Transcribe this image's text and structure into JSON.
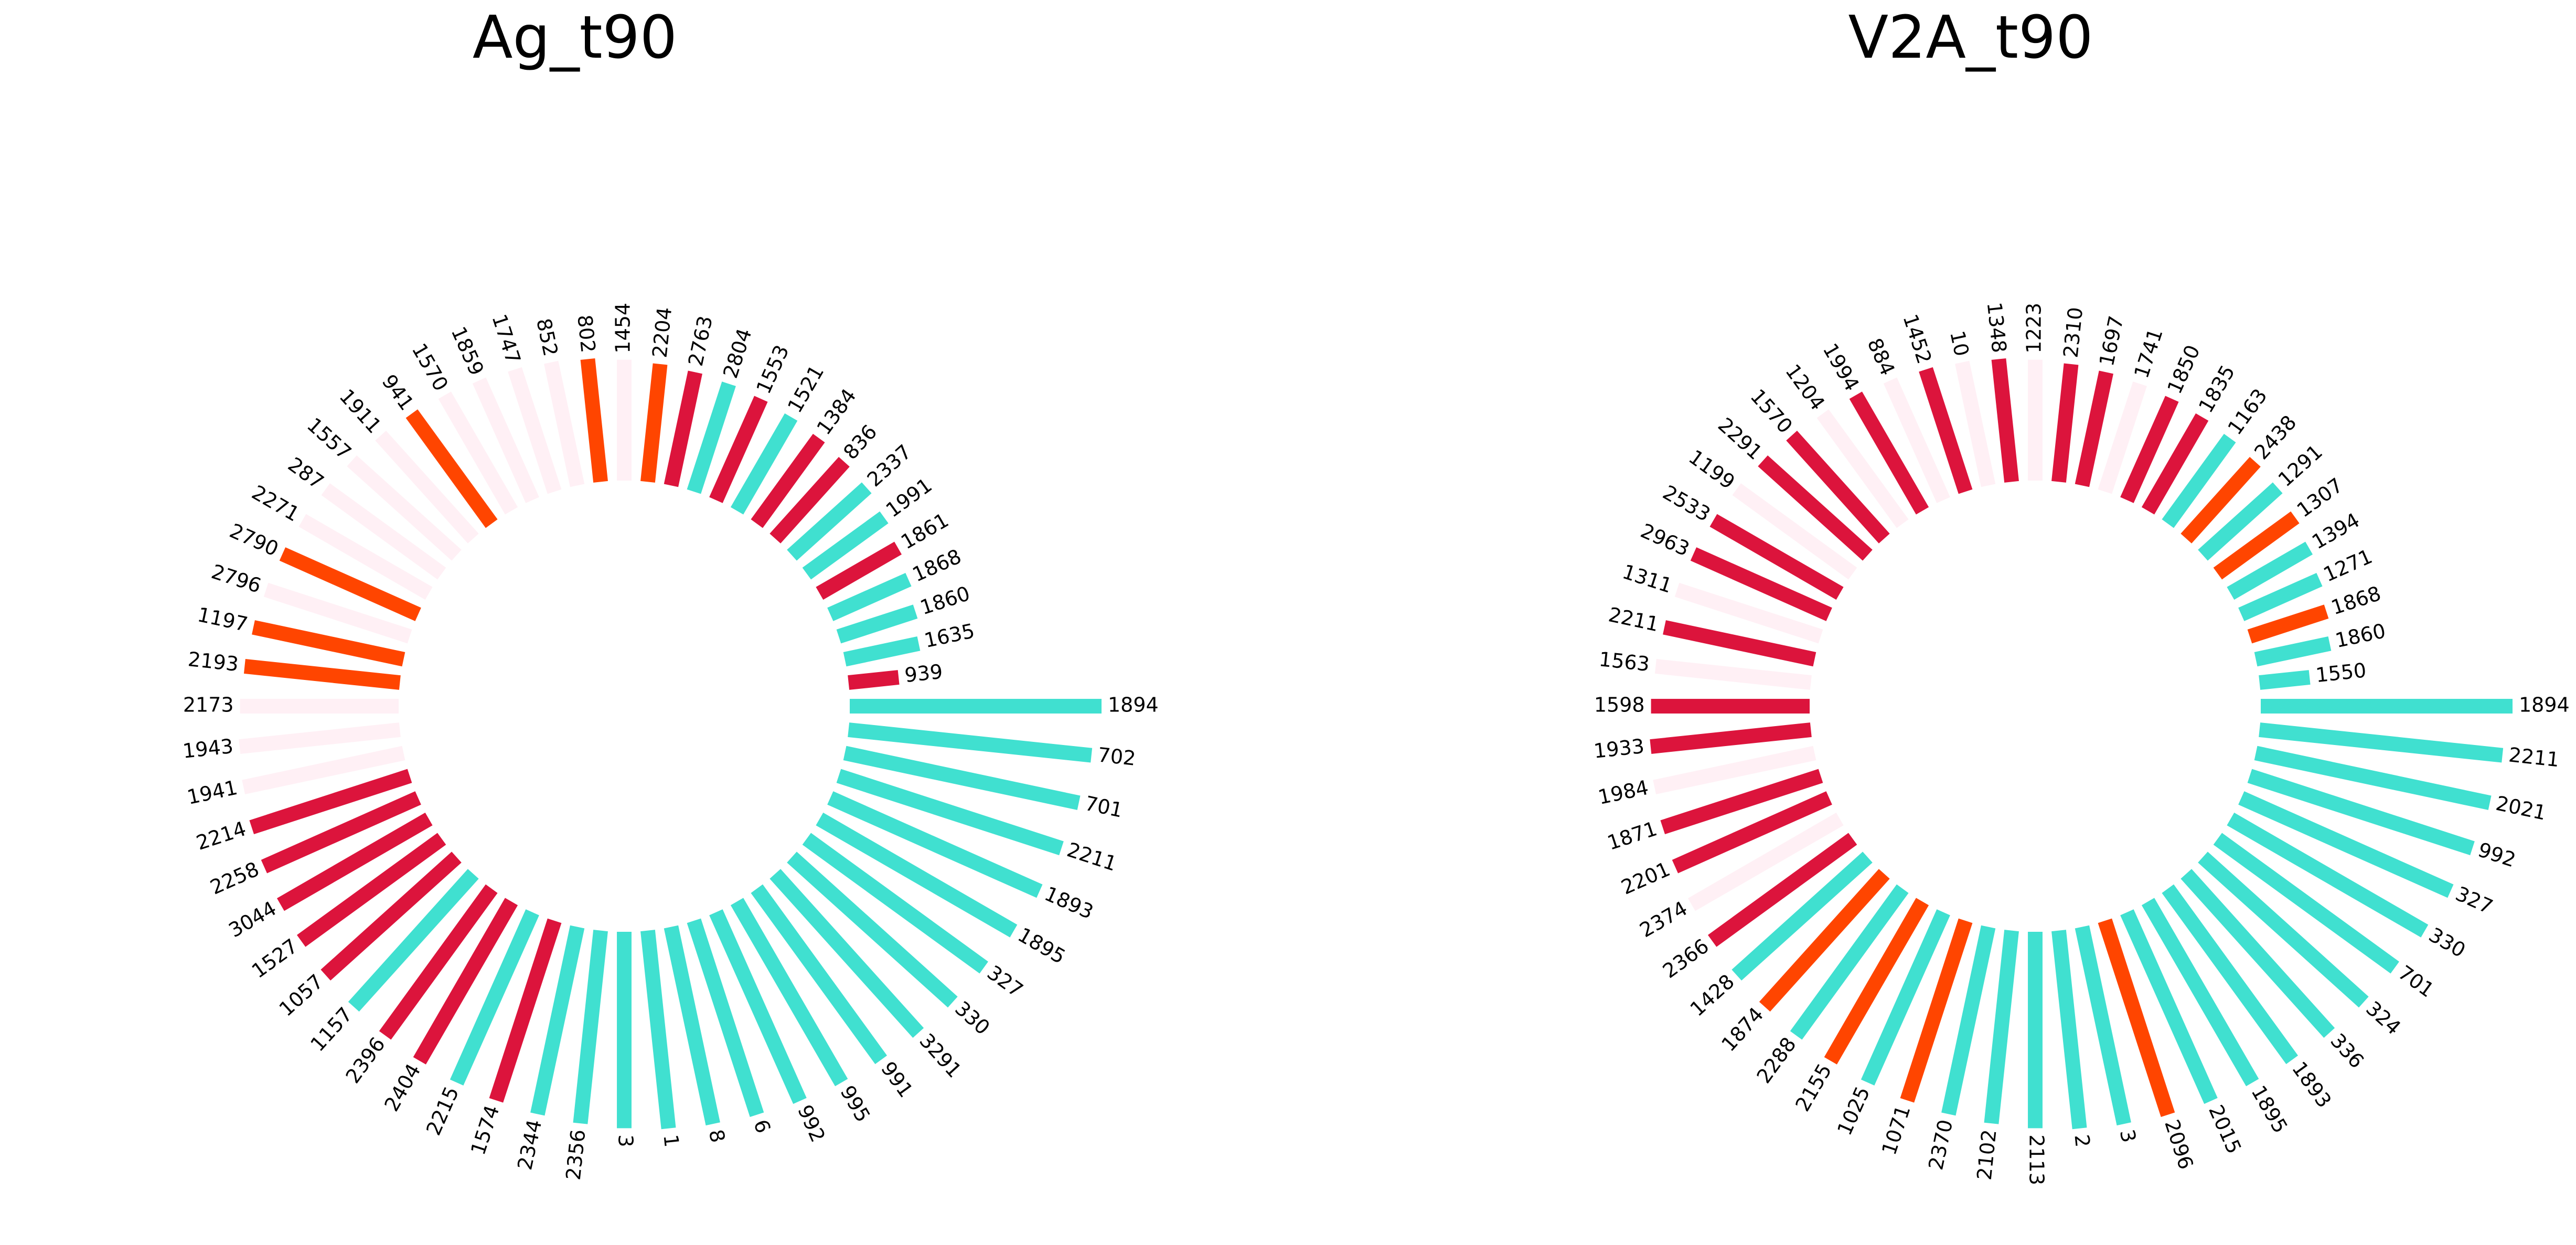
{
  "chart_data": [
    {
      "type": "polar_bar",
      "title": "Ag_t90",
      "ylim": [
        0,
        100
      ],
      "categories": [
        "1894",
        "702",
        "701",
        "2211",
        "1893",
        "1895",
        "327",
        "330",
        "3291",
        "991",
        "995",
        "992",
        "6",
        "8",
        "1",
        "3",
        "2356",
        "2344",
        "1574",
        "2215",
        "2404",
        "2396",
        "1157",
        "1057",
        "1527",
        "3044",
        "2258",
        "2214",
        "1941",
        "1943",
        "2173",
        "2193",
        "1197",
        "2796",
        "2790",
        "2271",
        "287",
        "1557",
        "1911",
        "941",
        "1570",
        "1859",
        "1747",
        "852",
        "802",
        "1454",
        "2204",
        "2763",
        "2804",
        "1553",
        "1521",
        "1384",
        "836",
        "2337",
        "1991",
        "1861",
        "1868",
        "1860",
        "1635",
        "939"
      ],
      "values": [
        100,
        97,
        95,
        93,
        91,
        89,
        87,
        86,
        85,
        84,
        83,
        82,
        81,
        80,
        79,
        78,
        77,
        76,
        75,
        74,
        73,
        72,
        71,
        70,
        69,
        68,
        67,
        66,
        65,
        64,
        63,
        62,
        61,
        60,
        59,
        58,
        57,
        56,
        55,
        54,
        53,
        52,
        51,
        50,
        49,
        48,
        47,
        46,
        45,
        44,
        43,
        42,
        41,
        40,
        38,
        36,
        34,
        32,
        30,
        20
      ],
      "colors": [
        "#40e0d0",
        "#40e0d0",
        "#40e0d0",
        "#40e0d0",
        "#40e0d0",
        "#40e0d0",
        "#40e0d0",
        "#40e0d0",
        "#40e0d0",
        "#40e0d0",
        "#40e0d0",
        "#40e0d0",
        "#40e0d0",
        "#40e0d0",
        "#40e0d0",
        "#40e0d0",
        "#40e0d0",
        "#40e0d0",
        "#dc143c",
        "#40e0d0",
        "#dc143c",
        "#dc143c",
        "#40e0d0",
        "#dc143c",
        "#dc143c",
        "#dc143c",
        "#dc143c",
        "#dc143c",
        "#fff0f5",
        "#fff0f5",
        "#fff0f5",
        "#ff4500",
        "#ff4500",
        "#fff0f5",
        "#ff4500",
        "#fff0f5",
        "#fff0f5",
        "#fff0f5",
        "#fff0f5",
        "#ff4500",
        "#fff0f5",
        "#fff0f5",
        "#fff0f5",
        "#fff0f5",
        "#ff4500",
        "#fff0f5",
        "#ff4500",
        "#dc143c",
        "#40e0d0",
        "#dc143c",
        "#40e0d0",
        "#dc143c",
        "#dc143c",
        "#40e0d0",
        "#40e0d0",
        "#dc143c",
        "#40e0d0",
        "#40e0d0",
        "#40e0d0",
        "#dc143c"
      ]
    },
    {
      "type": "polar_bar",
      "title": "V2A_t90",
      "ylim": [
        0,
        100
      ],
      "categories": [
        "1894",
        "2211",
        "2021",
        "992",
        "327",
        "330",
        "701",
        "324",
        "336",
        "1893",
        "1895",
        "2015",
        "2096",
        "3",
        "2",
        "2113",
        "2102",
        "2370",
        "1071",
        "1025",
        "2155",
        "2288",
        "1874",
        "1428",
        "2366",
        "2374",
        "2201",
        "1871",
        "1984",
        "1933",
        "1598",
        "1563",
        "2211",
        "1311",
        "2963",
        "2533",
        "1199",
        "2291",
        "1570",
        "1204",
        "1994",
        "884",
        "1452",
        "10",
        "1348",
        "1223",
        "2310",
        "1697",
        "1741",
        "1850",
        "1835",
        "1163",
        "2438",
        "1291",
        "1307",
        "1394",
        "1271",
        "1868",
        "1860",
        "1550"
      ],
      "values": [
        100,
        97,
        95,
        93,
        91,
        89,
        87,
        86,
        85,
        84,
        83,
        82,
        81,
        80,
        79,
        78,
        77,
        76,
        75,
        74,
        73,
        72,
        71,
        70,
        69,
        68,
        67,
        66,
        65,
        64,
        63,
        62,
        61,
        60,
        59,
        58,
        57,
        56,
        55,
        54,
        53,
        52,
        51,
        50,
        49,
        48,
        47,
        46,
        45,
        44,
        43,
        42,
        41,
        40,
        38,
        36,
        34,
        32,
        30,
        20
      ],
      "colors": [
        "#40e0d0",
        "#40e0d0",
        "#40e0d0",
        "#40e0d0",
        "#40e0d0",
        "#40e0d0",
        "#40e0d0",
        "#40e0d0",
        "#40e0d0",
        "#40e0d0",
        "#40e0d0",
        "#40e0d0",
        "#ff4500",
        "#40e0d0",
        "#40e0d0",
        "#40e0d0",
        "#40e0d0",
        "#40e0d0",
        "#ff4500",
        "#40e0d0",
        "#ff4500",
        "#40e0d0",
        "#ff4500",
        "#40e0d0",
        "#dc143c",
        "#fff0f5",
        "#dc143c",
        "#dc143c",
        "#fff0f5",
        "#dc143c",
        "#dc143c",
        "#fff0f5",
        "#dc143c",
        "#fff0f5",
        "#dc143c",
        "#dc143c",
        "#fff0f5",
        "#dc143c",
        "#dc143c",
        "#fff0f5",
        "#dc143c",
        "#fff0f5",
        "#dc143c",
        "#fff0f5",
        "#dc143c",
        "#fff0f5",
        "#dc143c",
        "#dc143c",
        "#fff0f5",
        "#dc143c",
        "#dc143c",
        "#40e0d0",
        "#ff4500",
        "#40e0d0",
        "#ff4500",
        "#40e0d0",
        "#40e0d0",
        "#ff4500",
        "#40e0d0",
        "#40e0d0"
      ]
    }
  ]
}
